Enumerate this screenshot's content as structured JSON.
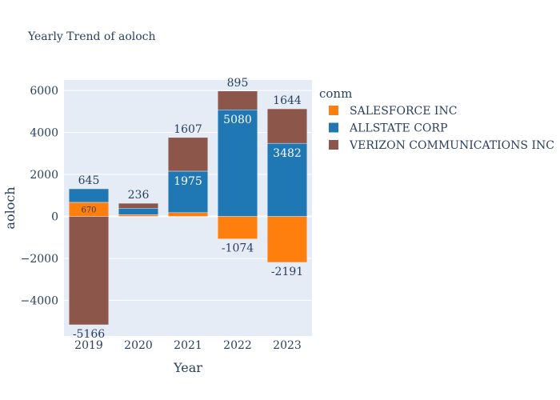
{
  "chart_data": {
    "type": "bar",
    "barmode": "relative",
    "title": "Yearly Trend of aoloch",
    "xlabel": "Year",
    "ylabel": "aoloch",
    "categories": [
      "2019",
      "2020",
      "2021",
      "2022",
      "2023"
    ],
    "ylim": [
      -5700,
      6500
    ],
    "yticks": [
      -4000,
      -2000,
      0,
      2000,
      4000,
      6000
    ],
    "ytick_labels": [
      "−4000",
      "−2000",
      "0",
      "2000",
      "4000",
      "6000"
    ],
    "legend_title": "conm",
    "legend_position": "top-right",
    "series": [
      {
        "name": "SALESFORCE INC",
        "color": "#ff7f0e",
        "values": [
          670,
          80,
          180,
          -1074,
          -2191
        ],
        "labels": [
          "670",
          "",
          "",
          "-1074",
          "-2191"
        ],
        "label_position": [
          "inside",
          "inside",
          "inside",
          "outside",
          "outside"
        ]
      },
      {
        "name": "ALLSTATE CORP",
        "color": "#1f77b4",
        "values": [
          645,
          310,
          1975,
          5080,
          3482
        ],
        "labels": [
          "645",
          "",
          "1975",
          "5080",
          "3482"
        ],
        "label_position": [
          "outside",
          "inside",
          "inside",
          "inside",
          "inside"
        ]
      },
      {
        "name": "VERIZON COMMUNICATIONS INC",
        "color": "#8c564b",
        "values": [
          -5166,
          236,
          1607,
          895,
          1644
        ],
        "labels": [
          "-5166",
          "236",
          "1607",
          "895",
          "1644"
        ],
        "label_position": [
          "outside",
          "outside",
          "outside",
          "outside",
          "outside"
        ]
      }
    ]
  }
}
